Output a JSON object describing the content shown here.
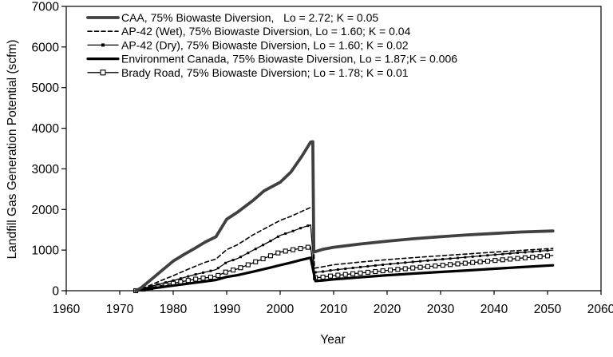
{
  "page": {
    "background": "#ffffff"
  },
  "chart_data": {
    "type": "line",
    "title": "",
    "xlabel": "Year",
    "ylabel": "Landfill Gas Generation Potential (scfm)",
    "xlim": [
      1960,
      2060
    ],
    "ylim": [
      0,
      7000
    ],
    "x_ticks": [
      1960,
      1970,
      1980,
      1990,
      2000,
      2010,
      2020,
      2030,
      2040,
      2050,
      2060
    ],
    "y_ticks": [
      0,
      1000,
      2000,
      3000,
      4000,
      5000,
      6000,
      7000
    ],
    "grid": false,
    "legend_position": "top-left-inside",
    "axis_color": "#000000",
    "series": [
      {
        "name": "CAA, 75% Biowaste Diversion,   Lo = 2.72; K = 0.05",
        "line": "solid",
        "color": "#404040",
        "width": 3.8,
        "marker": "none",
        "points": [
          [
            1973,
            0
          ],
          [
            1974,
            70
          ],
          [
            1976,
            290
          ],
          [
            1978,
            510
          ],
          [
            1980,
            730
          ],
          [
            1982,
            890
          ],
          [
            1984,
            1040
          ],
          [
            1986,
            1200
          ],
          [
            1988,
            1330
          ],
          [
            1990,
            1760
          ],
          [
            1992,
            1930
          ],
          [
            1995,
            2230
          ],
          [
            1997,
            2460
          ],
          [
            2000,
            2670
          ],
          [
            2002,
            2920
          ],
          [
            2004,
            3300
          ],
          [
            2005.7,
            3660
          ],
          [
            2006.1,
            3670
          ],
          [
            2006.3,
            950
          ],
          [
            2007,
            980
          ],
          [
            2008,
            1020
          ],
          [
            2010,
            1070
          ],
          [
            2015,
            1150
          ],
          [
            2020,
            1220
          ],
          [
            2025,
            1280
          ],
          [
            2030,
            1330
          ],
          [
            2035,
            1375
          ],
          [
            2040,
            1410
          ],
          [
            2045,
            1445
          ],
          [
            2051,
            1470
          ]
        ]
      },
      {
        "name": "AP-42 (Wet), 75% Biowaste Diversion, Lo = 1.60; K = 0.04",
        "line": "dashed",
        "dash": [
          5,
          3.5
        ],
        "color": "#000000",
        "width": 1.6,
        "marker": "none",
        "points": [
          [
            1973,
            0
          ],
          [
            1975,
            95
          ],
          [
            1978,
            265
          ],
          [
            1980,
            370
          ],
          [
            1983,
            540
          ],
          [
            1986,
            700
          ],
          [
            1988,
            780
          ],
          [
            1990,
            1010
          ],
          [
            1992,
            1130
          ],
          [
            1995,
            1380
          ],
          [
            1998,
            1590
          ],
          [
            2000,
            1730
          ],
          [
            2002,
            1830
          ],
          [
            2004,
            1950
          ],
          [
            2005.7,
            2050
          ],
          [
            2006.1,
            2055
          ],
          [
            2006.4,
            555
          ],
          [
            2008,
            590
          ],
          [
            2010,
            640
          ],
          [
            2015,
            705
          ],
          [
            2020,
            765
          ],
          [
            2025,
            815
          ],
          [
            2030,
            862
          ],
          [
            2035,
            905
          ],
          [
            2040,
            950
          ],
          [
            2045,
            992
          ],
          [
            2051,
            1040
          ]
        ]
      },
      {
        "name": "AP-42 (Dry), 75% Biowaste Diversion, Lo = 1.60; K = 0.02",
        "line": "solid",
        "color": "#000000",
        "width": 1.3,
        "marker": "filled-square",
        "marker_size": 3,
        "marker_step": 1.4,
        "points": [
          [
            1973,
            0
          ],
          [
            1976,
            115
          ],
          [
            1980,
            250
          ],
          [
            1984,
            395
          ],
          [
            1988,
            520
          ],
          [
            1990,
            700
          ],
          [
            1992,
            790
          ],
          [
            1995,
            1000
          ],
          [
            1998,
            1210
          ],
          [
            2000,
            1360
          ],
          [
            2002,
            1450
          ],
          [
            2004,
            1550
          ],
          [
            2005.7,
            1620
          ],
          [
            2006.4,
            450
          ],
          [
            2008,
            472
          ],
          [
            2010,
            510
          ],
          [
            2015,
            582
          ],
          [
            2020,
            650
          ],
          [
            2025,
            712
          ],
          [
            2030,
            770
          ],
          [
            2035,
            828
          ],
          [
            2040,
            884
          ],
          [
            2045,
            940
          ],
          [
            2051,
            1000
          ]
        ]
      },
      {
        "name": "Environment Canada, 75% Biowaste Diversion, Lo = 1.87;K = 0.006",
        "line": "solid",
        "color": "#000000",
        "width": 3.2,
        "marker": "none",
        "points": [
          [
            1973,
            0
          ],
          [
            1976,
            55
          ],
          [
            1980,
            125
          ],
          [
            1984,
            195
          ],
          [
            1988,
            265
          ],
          [
            1990,
            340
          ],
          [
            1992,
            382
          ],
          [
            1995,
            470
          ],
          [
            1998,
            565
          ],
          [
            2000,
            630
          ],
          [
            2002,
            692
          ],
          [
            2004,
            760
          ],
          [
            2005.7,
            812
          ],
          [
            2006.6,
            238
          ],
          [
            2008,
            252
          ],
          [
            2010,
            280
          ],
          [
            2015,
            332
          ],
          [
            2020,
            382
          ],
          [
            2025,
            422
          ],
          [
            2030,
            462
          ],
          [
            2035,
            500
          ],
          [
            2040,
            540
          ],
          [
            2045,
            580
          ],
          [
            2051,
            625
          ]
        ]
      },
      {
        "name": "Brady Road, 75% Biowaste Diversion; Lo = 1.78; K = 0.01",
        "line": "solid",
        "color": "#000000",
        "width": 1.3,
        "marker": "open-square",
        "marker_size": 5,
        "marker_step": 1.4,
        "points": [
          [
            1973,
            0
          ],
          [
            1976,
            82
          ],
          [
            1980,
            185
          ],
          [
            1984,
            282
          ],
          [
            1988,
            352
          ],
          [
            1990,
            470
          ],
          [
            1992,
            535
          ],
          [
            1995,
            690
          ],
          [
            1998,
            850
          ],
          [
            2000,
            950
          ],
          [
            2002,
            1000
          ],
          [
            2004,
            1045
          ],
          [
            2005.7,
            1080
          ],
          [
            2006.4,
            318
          ],
          [
            2008,
            335
          ],
          [
            2010,
            372
          ],
          [
            2015,
            436
          ],
          [
            2020,
            500
          ],
          [
            2025,
            562
          ],
          [
            2030,
            622
          ],
          [
            2035,
            682
          ],
          [
            2040,
            742
          ],
          [
            2045,
            802
          ],
          [
            2051,
            868
          ]
        ]
      }
    ]
  }
}
